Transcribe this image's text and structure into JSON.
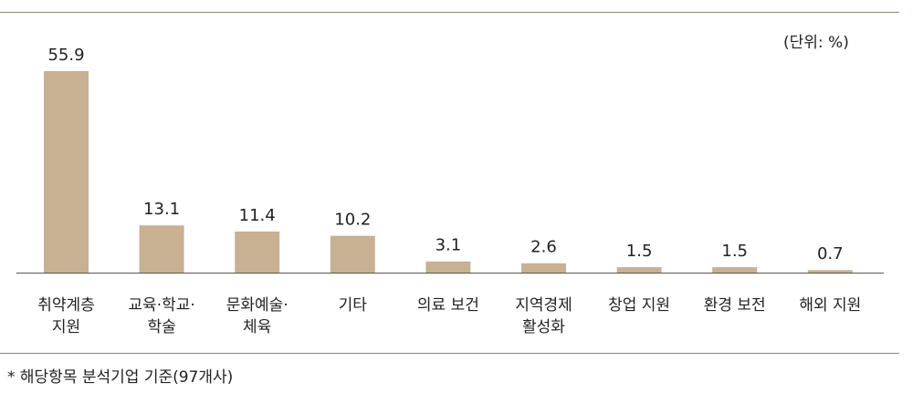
{
  "unit_label": "(단위: %)",
  "footnote": "* 해당항목 분석기업 기준(97개사)",
  "colors": {
    "bar": "#c8b093",
    "rule": "#8d8a6a",
    "baseline": "#555555",
    "text": "#222222"
  },
  "chart_data": {
    "type": "bar",
    "categories": [
      [
        "취약계층",
        "지원"
      ],
      [
        "교육·학교·",
        "학술"
      ],
      [
        "문화예술·",
        "체육"
      ],
      [
        "기타"
      ],
      [
        "의료 보건"
      ],
      [
        "지역경제",
        "활성화"
      ],
      [
        "창업 지원"
      ],
      [
        "환경 보전"
      ],
      [
        "해외 지원"
      ]
    ],
    "values": [
      55.9,
      13.1,
      11.4,
      10.2,
      3.1,
      2.6,
      1.5,
      1.5,
      0.7
    ],
    "value_labels": [
      "55.9",
      "13.1",
      "11.4",
      "10.2",
      "3.1",
      "2.6",
      "1.5",
      "1.5",
      "0.7"
    ],
    "ylim": [
      0,
      55.9
    ],
    "grid": false,
    "legend": "none"
  }
}
